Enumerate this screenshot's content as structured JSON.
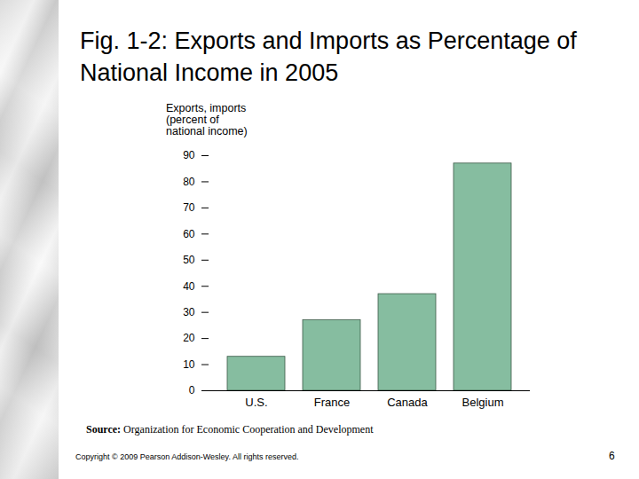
{
  "chart_data": {
    "type": "bar",
    "title": "Fig. 1-2: Exports and Imports as Percentage of National Income in 2005",
    "y_label": [
      "Exports, imports",
      "(percent of",
      "national income)"
    ],
    "categories": [
      "U.S.",
      "France",
      "Canada",
      "Belgium"
    ],
    "values": [
      13,
      27,
      37,
      87
    ],
    "color": "#86bda0",
    "ylim": [
      0,
      90
    ],
    "yticks": [
      0,
      10,
      20,
      30,
      40,
      50,
      60,
      70,
      80,
      90
    ],
    "grid": false,
    "source_label": "Source:",
    "source": "Organization for Economic Cooperation and Development",
    "footer": "Copyright © 2009 Pearson Addison-Wesley. All rights reserved.",
    "page_number": 6
  }
}
